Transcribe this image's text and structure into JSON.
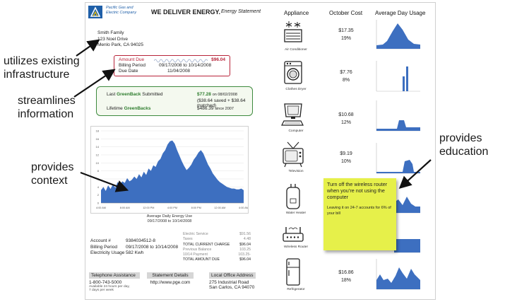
{
  "header": {
    "company_line1": "Pacific Gas and",
    "company_line2": "Electric Company",
    "slogan": "WE DELIVER ENERGY.",
    "statement_title": "Energy Statement"
  },
  "customer": {
    "name": "Smith Family",
    "street": "123 Noel Drive",
    "city": "Menlo Park, CA 94025"
  },
  "amount_box": {
    "amount_due_label": "Amount Due",
    "amount_due_value": "$96.04",
    "billing_period_label": "Billing Period",
    "billing_period_value": "09/17/2008 to 10/14/2008",
    "due_date_label": "Due Date",
    "due_date_value": "11/04/2008"
  },
  "greenback": {
    "last_label_prefix": "Last ",
    "last_label_brand": "GreenBack",
    "last_label_suffix": " Submitted",
    "last_amount": "$77.28",
    "last_date": "on 08/02/2008",
    "breakdown": "($38.64 saved + $38.64 matched)",
    "lifetime_prefix": "Lifetime ",
    "lifetime_brand": "GreenBacks",
    "lifetime_amount": "$486.39",
    "lifetime_since": "since 2007"
  },
  "chart_data": {
    "type": "area",
    "title": "Average Daily Energy Use",
    "subtitle": "09/17/2008 to 10/14/2008",
    "color": "#3d6fc0",
    "x_ticks": [
      "4:00 AM",
      "8:00 AM",
      "12:00 PM",
      "4:00 PM",
      "8:00 PM",
      "12:00 AM",
      "4:00 AM"
    ],
    "y_ticks": [
      "0",
      "2",
      "4",
      "6",
      "8",
      "10",
      "12",
      "14",
      "16",
      "18"
    ],
    "ylim": [
      0,
      18
    ],
    "x": [
      0,
      1,
      2,
      3,
      4,
      5,
      6,
      7,
      8,
      9,
      10,
      11,
      12,
      13,
      14,
      15,
      16,
      17,
      18,
      19,
      20,
      21,
      22,
      23,
      24,
      25,
      26,
      27,
      28,
      29,
      30,
      31,
      32,
      33,
      34,
      35,
      36,
      37,
      38,
      39,
      40,
      41,
      42,
      43,
      44,
      45,
      46,
      47,
      48,
      49,
      50,
      51,
      52,
      53,
      54,
      55,
      56,
      57,
      58,
      59,
      60
    ],
    "values": [
      3.2,
      4.0,
      3.0,
      4.4,
      3.5,
      4.6,
      3.8,
      5.2,
      4.6,
      5.4,
      5.0,
      6.2,
      5.4,
      5.8,
      6.6,
      6.0,
      7.2,
      6.4,
      7.8,
      7.0,
      8.6,
      8.0,
      9.4,
      9.0,
      10.4,
      11.0,
      12.4,
      13.2,
      14.6,
      15.4,
      15.6,
      14.8,
      13.2,
      11.8,
      10.4,
      9.2,
      8.2,
      8.8,
      9.6,
      10.8,
      11.6,
      12.6,
      13.2,
      12.4,
      11.0,
      9.6,
      8.6,
      7.4,
      6.6,
      5.8,
      5.2,
      4.8,
      4.4,
      4.0,
      3.8,
      3.6,
      3.6,
      3.4,
      3.4,
      3.6,
      3.2
    ]
  },
  "account": {
    "account_label": "Account #",
    "account_value": "9384034512-8",
    "period_label": "Billing Period",
    "period_value": "09/17/2008 to 10/14/2008",
    "usage_label": "Electricity Usage",
    "usage_value": "582 Kwh"
  },
  "charges": {
    "electric_service_label": "Electric Service",
    "electric_service_value": "$91.56",
    "taxes_label": "Taxes",
    "taxes_value": "4.48",
    "total_current_label": "TOTAL CURRENT CHARGE",
    "total_current_value": "$96.04",
    "previous_label": "Previous Balance",
    "previous_value": "103.25",
    "payment_label": "10/14 Payment",
    "payment_value": "103.25-",
    "total_due_label": "TOTAL AMOUNT DUE",
    "total_due_value": "$96.04"
  },
  "footer": {
    "phone_head": "Telephone Assistance",
    "phone_number": "1-800-743-5000",
    "phone_note1": "Available 24 hours per day,",
    "phone_note2": "7 days per week",
    "stmt_head": "Statement Details",
    "stmt_url": "http://www.pge.com",
    "office_head": "Local Office Address",
    "office_line1": "275 Industrial Road",
    "office_line2": "San Carlos, CA 94070"
  },
  "columns": {
    "appliance": "Appliance",
    "october_cost": "October Cost",
    "avg_day_usage": "Average Day Usage"
  },
  "appliances": [
    {
      "name": "Air Conditioner",
      "cost": "$17.35",
      "pct": "19%",
      "icon": "air-conditioner-icon"
    },
    {
      "name": "Clothes Dryer",
      "cost": "$7.76",
      "pct": "8%",
      "icon": "clothes-dryer-icon"
    },
    {
      "name": "Computer",
      "cost": "$10.68",
      "pct": "12%",
      "icon": "computer-icon"
    },
    {
      "name": "Television",
      "cost": "$9.19",
      "pct": "10%",
      "icon": "television-icon"
    },
    {
      "name": "Water Heater",
      "cost": "",
      "pct": "",
      "icon": "water-heater-icon"
    },
    {
      "name": "Wireless Router",
      "cost": "",
      "pct": "",
      "icon": "wireless-router-icon"
    },
    {
      "name": "Refrigerator",
      "cost": "$16.86",
      "pct": "18%",
      "icon": "refrigerator-icon"
    }
  ],
  "sticky_note": {
    "main": "Turn off the wireless router when you’re not using the computer",
    "sub": "Leaving it on 24-7 accounts for 6% of your bill"
  },
  "annotations": {
    "a1": "utilizes existing infrastructure",
    "a2": "streamlines information",
    "a3": "provides context",
    "a4": "provides education"
  }
}
